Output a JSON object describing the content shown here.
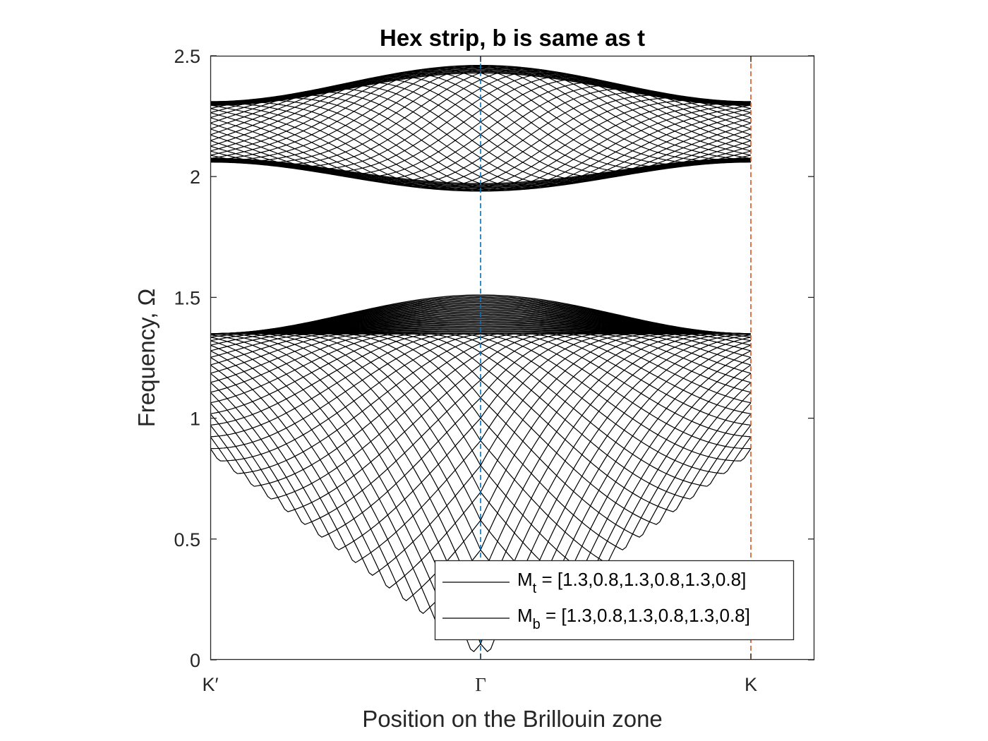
{
  "chart_data": {
    "type": "line",
    "title": "Hex strip, b is same as t",
    "xlabel": "Position on the Brillouin zone",
    "ylabel": "Frequency, Ω",
    "ylim": [
      0,
      2.5
    ],
    "yticks": [
      "0",
      "0.5",
      "1",
      "1.5",
      "2",
      "2.5"
    ],
    "xticks": [
      "K′",
      "Γ",
      "K"
    ],
    "grid": false,
    "legend_position": "bottom-right",
    "legend": [
      {
        "label_main": "M",
        "label_sub": "t",
        "label_rest": " = [1.3,0.8,1.3,0.8,1.3,0.8]"
      },
      {
        "label_main": "M",
        "label_sub": "b",
        "label_rest": " = [1.3,0.8,1.3,0.8,1.3,0.8]"
      }
    ],
    "reference_lines": [
      {
        "at": "Γ",
        "color": "#0072BD",
        "style": "dashed"
      },
      {
        "at": "K",
        "color": "#D95319",
        "style": "dashed"
      }
    ],
    "series": [
      {
        "band": "acoustic",
        "line_color": "#000000",
        "frequency_at_K_prime": [
          0.85,
          1.35
        ],
        "frequency_at_Gamma": [
          0,
          1.35
        ],
        "frequency_at_K": [
          0.85,
          1.35
        ]
      },
      {
        "band": "lower optical",
        "line_color": "#000000",
        "frequency_at_K_prime": [
          1.35,
          1.35
        ],
        "frequency_at_Gamma": [
          1.35,
          1.51
        ],
        "frequency_at_K": [
          1.35,
          1.35
        ]
      },
      {
        "band": "upper optical",
        "line_color": "#000000",
        "frequency_at_K_prime": [
          2.06,
          2.31
        ],
        "frequency_at_Gamma": [
          1.94,
          2.46
        ],
        "frequency_at_K": [
          2.06,
          2.31
        ]
      }
    ]
  }
}
